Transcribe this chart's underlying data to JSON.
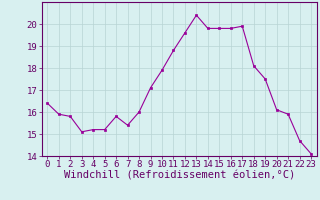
{
  "x": [
    0,
    1,
    2,
    3,
    4,
    5,
    6,
    7,
    8,
    9,
    10,
    11,
    12,
    13,
    14,
    15,
    16,
    17,
    18,
    19,
    20,
    21,
    22,
    23
  ],
  "y": [
    16.4,
    15.9,
    15.8,
    15.1,
    15.2,
    15.2,
    15.8,
    15.4,
    16.0,
    17.1,
    17.9,
    18.8,
    19.6,
    20.4,
    19.8,
    19.8,
    19.8,
    19.9,
    18.1,
    17.5,
    16.1,
    15.9,
    14.7,
    14.1
  ],
  "line_color": "#990099",
  "marker": "s",
  "marker_size": 2,
  "bg_color": "#d8f0f0",
  "grid_color": "#b8d4d4",
  "xlabel": "Windchill (Refroidissement éolien,°C)",
  "ylim": [
    14,
    21
  ],
  "xlim": [
    -0.5,
    23.5
  ],
  "yticks": [
    14,
    15,
    16,
    17,
    18,
    19,
    20
  ],
  "xticks": [
    0,
    1,
    2,
    3,
    4,
    5,
    6,
    7,
    8,
    9,
    10,
    11,
    12,
    13,
    14,
    15,
    16,
    17,
    18,
    19,
    20,
    21,
    22,
    23
  ],
  "tick_label_fontsize": 6.5,
  "xlabel_fontsize": 7.5,
  "line_color_hex": "#990099",
  "axis_color": "#660066",
  "tick_color": "#660066"
}
